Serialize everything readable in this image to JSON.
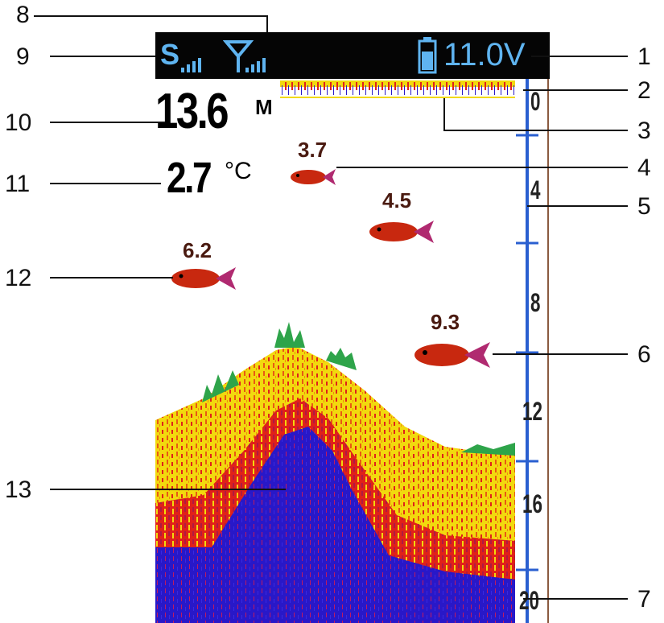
{
  "status_bar": {
    "sonar_signal_label": "S",
    "battery_voltage": "11.0V"
  },
  "readouts": {
    "depth_value": "13.6",
    "depth_unit": "M",
    "temperature_value": "2.7",
    "temperature_unit": "°C"
  },
  "fish_depths": [
    "3.7",
    "4.5",
    "6.2",
    "9.3"
  ],
  "depth_scale": {
    "tick_labels": [
      "0",
      "4",
      "8",
      "12",
      "16",
      "20"
    ]
  },
  "callouts": [
    "1",
    "2",
    "3",
    "4",
    "5",
    "6",
    "7",
    "8",
    "9",
    "10",
    "11",
    "12",
    "13"
  ],
  "colors": {
    "screen_bar": "#050505",
    "icon_blue": "#5fb4f0",
    "scale_blue": "#2a5fd0",
    "sonar_yellow": "#f2d90e",
    "sonar_red": "#e0211a",
    "sonar_blue": "#2818c8",
    "weed_green": "#2ea44a",
    "fish_red": "#c8280f"
  }
}
